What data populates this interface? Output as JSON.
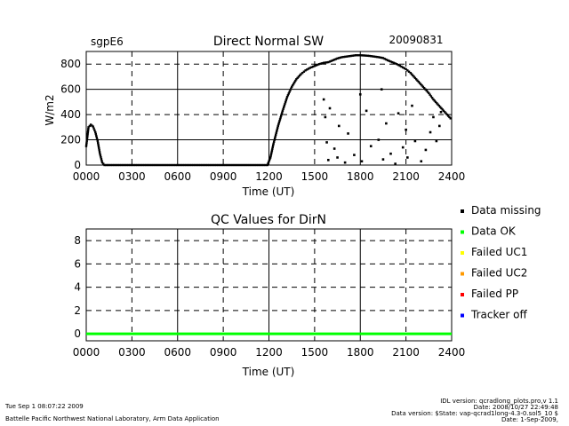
{
  "header": {
    "site": "sgpE6",
    "date": "20090831"
  },
  "chart_data": [
    {
      "type": "scatter",
      "title": "Direct Normal SW",
      "xlabel": "Time (UT)",
      "ylabel": "W/m2",
      "x_ticks": [
        "0000",
        "0300",
        "0600",
        "0900",
        "1200",
        "1500",
        "1800",
        "2100",
        "2400"
      ],
      "y_ticks": [
        "0",
        "200",
        "400",
        "600",
        "800"
      ],
      "xlim": [
        0,
        24
      ],
      "ylim": [
        0,
        900
      ],
      "grid": true,
      "series": [
        {
          "color": "#000000",
          "x": [
            0.0,
            0.15,
            0.3,
            0.45,
            0.6,
            0.75,
            0.9,
            1.05,
            1.2,
            1.5,
            3,
            6,
            9,
            11.9,
            12.1,
            12.3,
            12.6,
            12.9,
            13.2,
            13.5,
            13.8,
            14.1,
            14.4,
            14.7,
            15.0,
            15.3,
            15.6,
            15.9,
            16.2,
            16.5,
            16.8,
            17.1,
            17.4,
            17.7,
            18.0,
            18.3,
            18.6,
            18.9,
            19.2,
            19.5,
            19.8,
            20.1,
            20.4,
            20.7,
            21.0,
            21.3,
            21.6,
            21.9,
            22.2,
            22.5,
            22.8,
            23.1,
            23.4,
            23.7,
            24.0
          ],
          "y": [
            150,
            300,
            320,
            305,
            260,
            190,
            90,
            20,
            0,
            0,
            0,
            0,
            0,
            0,
            60,
            170,
            310,
            430,
            540,
            620,
            680,
            720,
            750,
            770,
            785,
            800,
            810,
            815,
            830,
            845,
            855,
            860,
            865,
            870,
            870,
            868,
            865,
            860,
            855,
            848,
            830,
            815,
            800,
            780,
            760,
            730,
            690,
            650,
            610,
            570,
            520,
            480,
            440,
            400,
            360
          ]
        }
      ],
      "scattered_drops": {
        "x": [
          15.6,
          15.7,
          15.8,
          15.9,
          16.0,
          16.3,
          16.5,
          16.6,
          17.0,
          17.2,
          17.6,
          18.0,
          18.1,
          18.4,
          18.7,
          19.2,
          19.4,
          19.5,
          19.7,
          20.0,
          20.3,
          20.5,
          20.8,
          21.0,
          21.1,
          21.4,
          21.6,
          22.0,
          22.3,
          22.6,
          22.8,
          23.0,
          23.2,
          23.3
        ],
        "y": [
          520,
          380,
          180,
          40,
          450,
          130,
          60,
          310,
          20,
          250,
          80,
          560,
          30,
          430,
          150,
          200,
          600,
          45,
          330,
          90,
          10,
          410,
          140,
          280,
          60,
          470,
          190,
          30,
          120,
          260,
          380,
          190,
          310,
          420
        ]
      }
    },
    {
      "type": "scatter",
      "title": "QC Values for DirN",
      "xlabel": "Time (UT)",
      "x_ticks": [
        "0000",
        "0300",
        "0600",
        "0900",
        "1200",
        "1500",
        "1800",
        "2100",
        "2400"
      ],
      "y_ticks": [
        "0",
        "2",
        "4",
        "6",
        "8"
      ],
      "xlim": [
        0,
        24
      ],
      "ylim": [
        -0.6,
        9
      ],
      "grid": true,
      "series": [
        {
          "color": "#00ff00",
          "x": [
            0,
            24
          ],
          "y": [
            0,
            0
          ]
        }
      ]
    }
  ],
  "legend": [
    {
      "label": "Data missing",
      "color": "#000000"
    },
    {
      "label": "Data OK",
      "color": "#00ff00"
    },
    {
      "label": "Failed UC1",
      "color": "#ffff00"
    },
    {
      "label": "Failed UC2",
      "color": "#ff9900"
    },
    {
      "label": "Failed PP",
      "color": "#ff0000"
    },
    {
      "label": "Tracker off",
      "color": "#0000ff"
    }
  ],
  "footer": {
    "timestamp": "Tue Sep  1 08:07:22 2009",
    "institution": "Battelle Pacific Northwest National Laboratory, Arm Data Application",
    "idl_version": "IDL version: qcradlong_plots.pro,v 1.1",
    "idl_date": "Date: 2008/10/27 22:49:48",
    "data_version": "Data version: $State: vap-qcrad1long-4.3-0.sol5_10 $",
    "data_date": "Date: 1-Sep-2009,"
  }
}
